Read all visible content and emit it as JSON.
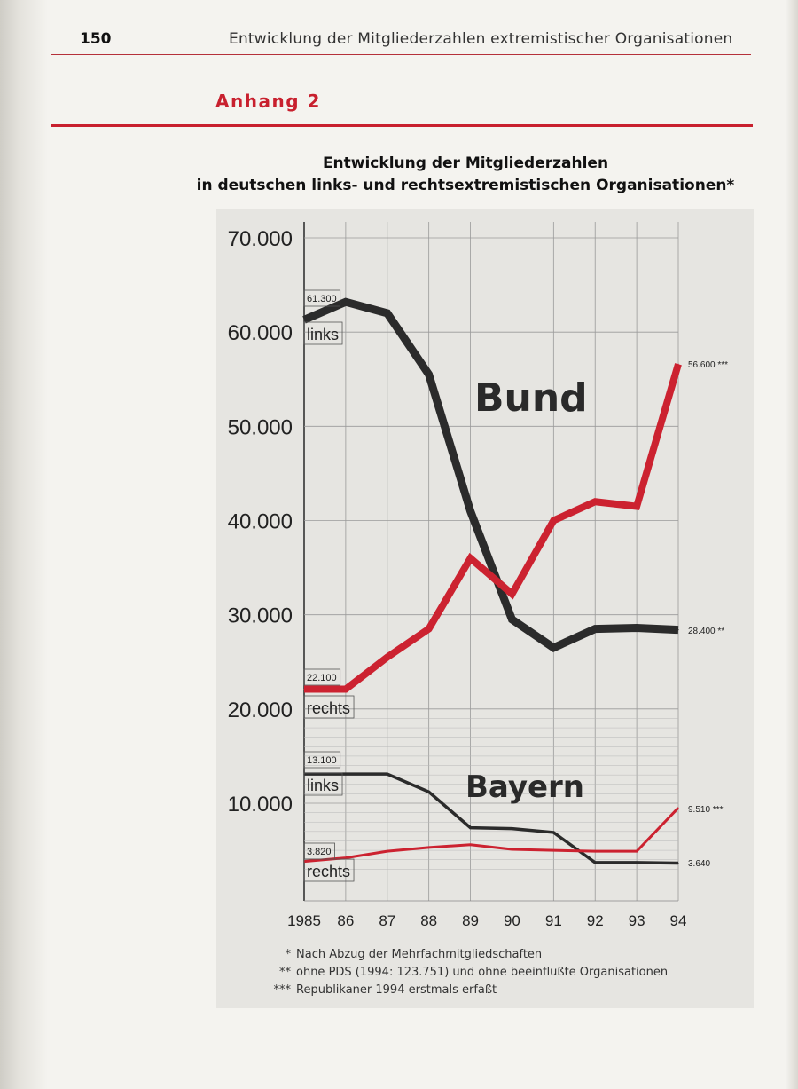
{
  "header": {
    "page_number": "150",
    "running_title": "Entwicklung der Mitgliederzahlen extremistischer Organisationen"
  },
  "section": {
    "label": "Anhang 2"
  },
  "chart_title": {
    "line1": "Entwicklung der Mitgliederzahlen",
    "line2": "in deutschen links- und rechtsextremistischen Organisationen*"
  },
  "chart_data": {
    "type": "line",
    "x": [
      1985,
      1986,
      1987,
      1988,
      1989,
      1990,
      1991,
      1992,
      1993,
      1994
    ],
    "x_tick_labels": [
      "1985",
      "86",
      "87",
      "88",
      "89",
      "90",
      "91",
      "92",
      "93",
      "94"
    ],
    "y_ticks": [
      10000,
      20000,
      30000,
      40000,
      50000,
      60000,
      70000
    ],
    "y_tick_labels": [
      "10.000",
      "20.000",
      "30.000",
      "40.000",
      "50.000",
      "60.000",
      "70.000"
    ],
    "ylim": [
      2500,
      71000
    ],
    "grid": true,
    "colors": {
      "links": "#2b2b2b",
      "rechts": "#cc2230"
    },
    "groups": [
      {
        "label": "Bund",
        "series": [
          {
            "name": "links",
            "color": "#2b2b2b",
            "values": [
              61300,
              63200,
              62000,
              55500,
              41000,
              29500,
              26500,
              28500,
              28600,
              28400
            ],
            "start_label": "61.300",
            "end_label": "28.400 **"
          },
          {
            "name": "rechts",
            "color": "#cc2230",
            "values": [
              22100,
              22100,
              25500,
              28500,
              36000,
              32200,
              40000,
              42000,
              41500,
              56600
            ],
            "start_label": "22.100",
            "end_label": "56.600 ***"
          }
        ]
      },
      {
        "label": "Bayern",
        "series": [
          {
            "name": "links",
            "color": "#2b2b2b",
            "values": [
              13100,
              13100,
              13100,
              11200,
              7400,
              7300,
              6900,
              3700,
              3700,
              3640
            ],
            "start_label": "13.100",
            "end_label": "3.640"
          },
          {
            "name": "rechts",
            "color": "#cc2230",
            "values": [
              3820,
              4200,
              4900,
              5300,
              5600,
              5100,
              5000,
              4900,
              4900,
              9510
            ],
            "start_label": "3.820",
            "end_label": "9.510 ***"
          }
        ]
      }
    ]
  },
  "footnotes": [
    {
      "mark": "*",
      "text": "Nach Abzug der Mehrfachmitgliedschaften"
    },
    {
      "mark": "**",
      "text": "ohne PDS (1994: 123.751) und ohne beeinflußte Organisationen"
    },
    {
      "mark": "***",
      "text": "Republikaner 1994 erstmals erfaßt"
    }
  ]
}
